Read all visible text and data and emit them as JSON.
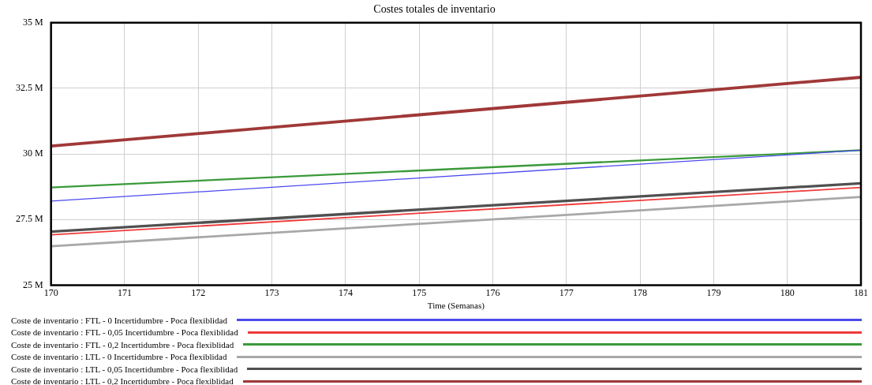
{
  "chart_data": {
    "type": "line",
    "title": "Costes totales de inventario",
    "xlabel": "Time (Semanas)",
    "x": [
      170,
      181
    ],
    "series": [
      {
        "name": "Coste de inventario : FTL - 0 Incertidumbre - Poca flexiblidad",
        "color": "#4a4aee",
        "values": [
          28.2,
          30.14
        ]
      },
      {
        "name": "Coste de inventario : FTL - 0,05 Incertidumbre - Poca flexiblidad",
        "color": "#ee3a3a",
        "values": [
          26.92,
          28.72
        ]
      },
      {
        "name": "Coste de inventario : FTL - 0,2 Incertidumbre - Poca flexiblidad",
        "color": "#3a9a3a",
        "values": [
          28.72,
          30.14
        ]
      },
      {
        "name": "Coste de inventario : LTL - 0 Incertidumbre - Poca flexiblidad",
        "color": "#a8a8a8",
        "values": [
          26.48,
          28.36
        ]
      },
      {
        "name": "Coste de inventario : LTL - 0,05 Incertidumbre - Poca flexiblidad",
        "color": "#505050",
        "values": [
          27.04,
          28.88
        ]
      },
      {
        "name": "Coste de inventario : LTL - 0,2 Incertidumbre - Poca flexiblidad",
        "color": "#a03838",
        "values": [
          30.3,
          32.92
        ]
      }
    ],
    "xlim": [
      170,
      181
    ],
    "xticks": [
      170,
      171,
      172,
      173,
      174,
      175,
      176,
      177,
      178,
      179,
      180,
      181
    ],
    "ylim": [
      25,
      35
    ],
    "yticks": [
      {
        "value": 25,
        "label": "25 M"
      },
      {
        "value": 27.5,
        "label": "27.5 M"
      },
      {
        "value": 30,
        "label": "30 M"
      },
      {
        "value": 32.5,
        "label": "32.5 M"
      },
      {
        "value": 35,
        "label": "35 M"
      }
    ],
    "grid": true,
    "legend": "bottom",
    "marker": "none",
    "line_style": "solid"
  }
}
